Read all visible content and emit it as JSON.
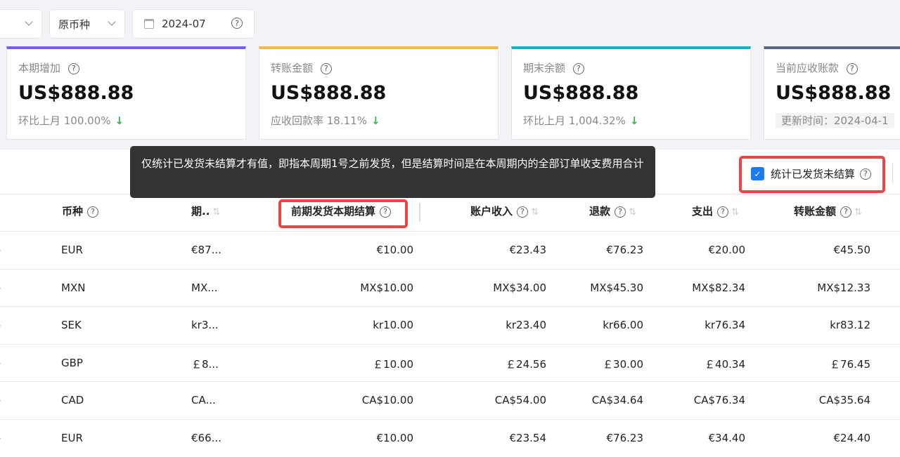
{
  "filters": {
    "currency_mode": "原币种",
    "month": "2024-07"
  },
  "cards": [
    {
      "title": "本期增加",
      "value": "US$888.88",
      "sub": "环比上月 100.00%",
      "trend": "down",
      "color": "#7b5cf0"
    },
    {
      "title": "转账金额",
      "value": "US$888.88",
      "sub": "应收回款率 18.11%",
      "trend": "down",
      "color": "#f5b840"
    },
    {
      "title": "期末余额",
      "value": "US$888.88",
      "sub": "环比上月 1,004.32%",
      "trend": "down",
      "color": "#10b5c9"
    },
    {
      "title": "当前应收账款",
      "value": "US$888.88",
      "sub": "更新时间：2024-04-1",
      "color": "#5d6687"
    }
  ],
  "tooltip": "仅统计已发货未结算才有值，即指本周期1号之前发货，但是结算时间是在本周期内的全部订单收支费用合计",
  "checkbox": {
    "label": "统计已发货未结算",
    "checked": true
  },
  "columns": [
    "币种",
    "期..",
    "前期发货本期结算",
    "账户收入",
    "退款",
    "支出",
    "转账金额"
  ],
  "rows": [
    [
      "EUR",
      "€87...",
      "€10.00",
      "€23.43",
      "€76.23",
      "€20.00",
      "€45.50"
    ],
    [
      "MXN",
      "MX...",
      "MX$10.00",
      "MX$34.00",
      "MX$45.30",
      "MX$82.34",
      "MX$12.33"
    ],
    [
      "SEK",
      "kr3...",
      "kr10.00",
      "kr23.40",
      "kr66.00",
      "kr76.34",
      "kr83.12"
    ],
    [
      "GBP",
      "￡8...",
      "￡10.00",
      "￡24.56",
      "￡30.00",
      "￡40.34",
      "￡76.45"
    ],
    [
      "CAD",
      "CA...",
      "CA$10.00",
      "CA$54.00",
      "CA$34.64",
      "CA$76.34",
      "CA$35.64"
    ],
    [
      "EUR",
      "€66...",
      "€10.00",
      "€23.54",
      "€76.23",
      "€34.40",
      "€24.40"
    ]
  ]
}
